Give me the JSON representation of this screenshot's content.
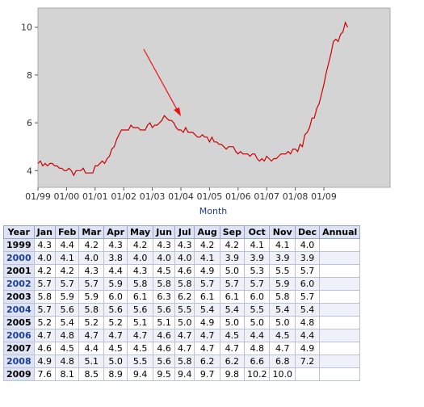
{
  "chart_data": {
    "type": "line",
    "title": "",
    "xlabel": "Month",
    "ylabel": "",
    "ylim": [
      3.3,
      10.8
    ],
    "y_ticks": [
      4,
      6,
      8,
      10
    ],
    "x_tick_labels": [
      "01/99",
      "01/00",
      "01/01",
      "01/02",
      "01/03",
      "01/04",
      "01/05",
      "01/06",
      "01/07",
      "01/08",
      "01/09"
    ],
    "grid": false,
    "background_color": "#d4d4d4",
    "line_color": "#cc0000",
    "annotation": {
      "type": "arrow",
      "points_to": "June 2003",
      "color": "#ee1111"
    },
    "series": [
      {
        "values": [
          4.3,
          4.4,
          4.2,
          4.3,
          4.2,
          4.3,
          4.3,
          4.2,
          4.2,
          4.1,
          4.1,
          4.0,
          4.0,
          4.1,
          4.0,
          3.8,
          4.0,
          4.0,
          4.0,
          4.1,
          3.9,
          3.9,
          3.9,
          3.9,
          4.2,
          4.2,
          4.3,
          4.4,
          4.3,
          4.5,
          4.6,
          4.9,
          5.0,
          5.3,
          5.5,
          5.7,
          5.7,
          5.7,
          5.7,
          5.9,
          5.8,
          5.8,
          5.8,
          5.7,
          5.7,
          5.7,
          5.9,
          6.0,
          5.8,
          5.9,
          5.9,
          6.0,
          6.1,
          6.3,
          6.2,
          6.1,
          6.1,
          6.0,
          5.8,
          5.7,
          5.7,
          5.6,
          5.8,
          5.6,
          5.6,
          5.6,
          5.5,
          5.4,
          5.4,
          5.5,
          5.4,
          5.4,
          5.2,
          5.4,
          5.2,
          5.2,
          5.1,
          5.1,
          5.0,
          4.9,
          5.0,
          5.0,
          5.0,
          4.8,
          4.7,
          4.8,
          4.7,
          4.7,
          4.7,
          4.6,
          4.7,
          4.7,
          4.5,
          4.4,
          4.5,
          4.4,
          4.6,
          4.5,
          4.4,
          4.5,
          4.5,
          4.6,
          4.7,
          4.7,
          4.7,
          4.8,
          4.7,
          4.9,
          4.9,
          4.8,
          5.1,
          5.0,
          5.5,
          5.6,
          5.8,
          6.2,
          6.2,
          6.6,
          6.8,
          7.2,
          7.6,
          8.1,
          8.5,
          8.9,
          9.4,
          9.5,
          9.4,
          9.7,
          9.8,
          10.2,
          10.0
        ]
      }
    ]
  },
  "table": {
    "headers": [
      "Year",
      "Jan",
      "Feb",
      "Mar",
      "Apr",
      "May",
      "Jun",
      "Jul",
      "Aug",
      "Sep",
      "Oct",
      "Nov",
      "Dec",
      "Annual"
    ],
    "rows": [
      {
        "year": "1999",
        "values": [
          "4.3",
          "4.4",
          "4.2",
          "4.3",
          "4.2",
          "4.3",
          "4.3",
          "4.2",
          "4.2",
          "4.1",
          "4.1",
          "4.0",
          ""
        ]
      },
      {
        "year": "2000",
        "values": [
          "4.0",
          "4.1",
          "4.0",
          "3.8",
          "4.0",
          "4.0",
          "4.0",
          "4.1",
          "3.9",
          "3.9",
          "3.9",
          "3.9",
          ""
        ]
      },
      {
        "year": "2001",
        "values": [
          "4.2",
          "4.2",
          "4.3",
          "4.4",
          "4.3",
          "4.5",
          "4.6",
          "4.9",
          "5.0",
          "5.3",
          "5.5",
          "5.7",
          ""
        ]
      },
      {
        "year": "2002",
        "values": [
          "5.7",
          "5.7",
          "5.7",
          "5.9",
          "5.8",
          "5.8",
          "5.8",
          "5.7",
          "5.7",
          "5.7",
          "5.9",
          "6.0",
          ""
        ]
      },
      {
        "year": "2003",
        "values": [
          "5.8",
          "5.9",
          "5.9",
          "6.0",
          "6.1",
          "6.3",
          "6.2",
          "6.1",
          "6.1",
          "6.0",
          "5.8",
          "5.7",
          ""
        ]
      },
      {
        "year": "2004",
        "values": [
          "5.7",
          "5.6",
          "5.8",
          "5.6",
          "5.6",
          "5.6",
          "5.5",
          "5.4",
          "5.4",
          "5.5",
          "5.4",
          "5.4",
          ""
        ]
      },
      {
        "year": "2005",
        "values": [
          "5.2",
          "5.4",
          "5.2",
          "5.2",
          "5.1",
          "5.1",
          "5.0",
          "4.9",
          "5.0",
          "5.0",
          "5.0",
          "4.8",
          ""
        ]
      },
      {
        "year": "2006",
        "values": [
          "4.7",
          "4.8",
          "4.7",
          "4.7",
          "4.7",
          "4.6",
          "4.7",
          "4.7",
          "4.5",
          "4.4",
          "4.5",
          "4.4",
          ""
        ]
      },
      {
        "year": "2007",
        "values": [
          "4.6",
          "4.5",
          "4.4",
          "4.5",
          "4.5",
          "4.6",
          "4.7",
          "4.7",
          "4.7",
          "4.8",
          "4.7",
          "4.9",
          ""
        ]
      },
      {
        "year": "2008",
        "values": [
          "4.9",
          "4.8",
          "5.1",
          "5.0",
          "5.5",
          "5.6",
          "5.8",
          "6.2",
          "6.2",
          "6.6",
          "6.8",
          "7.2",
          ""
        ]
      },
      {
        "year": "2009",
        "values": [
          "7.6",
          "8.1",
          "8.5",
          "8.9",
          "9.4",
          "9.5",
          "9.4",
          "9.7",
          "9.8",
          "10.2",
          "10.0",
          "",
          ""
        ]
      }
    ]
  }
}
